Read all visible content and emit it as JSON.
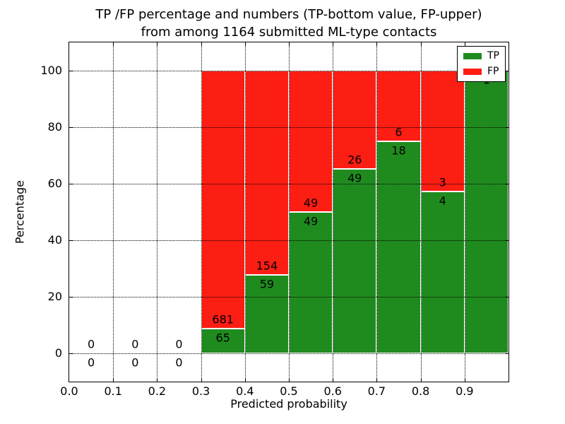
{
  "figure": {
    "background_color": "#ffffff",
    "spine_color": "#000000",
    "grid_color": "#000000"
  },
  "chart_data": {
    "type": "bar",
    "stacked": true,
    "title_line1": "TP /FP percentage and numbers (TP-bottom value, FP-upper)",
    "title_line2": "from among 1164 submitted ML-type contacts",
    "xlabel": "Predicted probability",
    "ylabel": "Percentage",
    "total_contacts": 1164,
    "xlim": [
      0.0,
      1.0
    ],
    "ylim": [
      -10,
      110
    ],
    "grid": "dotted, both axes",
    "legend_position": "upper right",
    "bar_edge_color": "#ffffff",
    "series": [
      {
        "name": "TP",
        "color": "#1f8b1f"
      },
      {
        "name": "FP",
        "color": "#fc1d13"
      }
    ],
    "x_ticks": [
      {
        "label": "0.0",
        "value": 0.0
      },
      {
        "label": "0.1",
        "value": 0.1
      },
      {
        "label": "0.2",
        "value": 0.2
      },
      {
        "label": "0.3",
        "value": 0.3
      },
      {
        "label": "0.4",
        "value": 0.4
      },
      {
        "label": "0.5",
        "value": 0.5
      },
      {
        "label": "0.6",
        "value": 0.6
      },
      {
        "label": "0.7",
        "value": 0.7
      },
      {
        "label": "0.8",
        "value": 0.8
      },
      {
        "label": "0.9",
        "value": 0.9
      }
    ],
    "y_ticks": [
      {
        "label": "0",
        "value": 0
      },
      {
        "label": "20",
        "value": 20
      },
      {
        "label": "40",
        "value": 40
      },
      {
        "label": "60",
        "value": 60
      },
      {
        "label": "80",
        "value": 80
      },
      {
        "label": "100",
        "value": 100
      }
    ],
    "bins": [
      {
        "range": [
          0.0,
          0.1
        ],
        "tp": 0,
        "fp": 0
      },
      {
        "range": [
          0.1,
          0.2
        ],
        "tp": 0,
        "fp": 0
      },
      {
        "range": [
          0.2,
          0.3
        ],
        "tp": 0,
        "fp": 0
      },
      {
        "range": [
          0.3,
          0.4
        ],
        "tp": 65,
        "fp": 681
      },
      {
        "range": [
          0.4,
          0.5
        ],
        "tp": 59,
        "fp": 154
      },
      {
        "range": [
          0.5,
          0.6
        ],
        "tp": 49,
        "fp": 49
      },
      {
        "range": [
          0.6,
          0.7
        ],
        "tp": 49,
        "fp": 26
      },
      {
        "range": [
          0.7,
          0.8
        ],
        "tp": 18,
        "fp": 6
      },
      {
        "range": [
          0.8,
          0.9
        ],
        "tp": 4,
        "fp": 3
      },
      {
        "range": [
          0.9,
          1.0
        ],
        "tp": 1,
        "fp": 0
      }
    ]
  }
}
